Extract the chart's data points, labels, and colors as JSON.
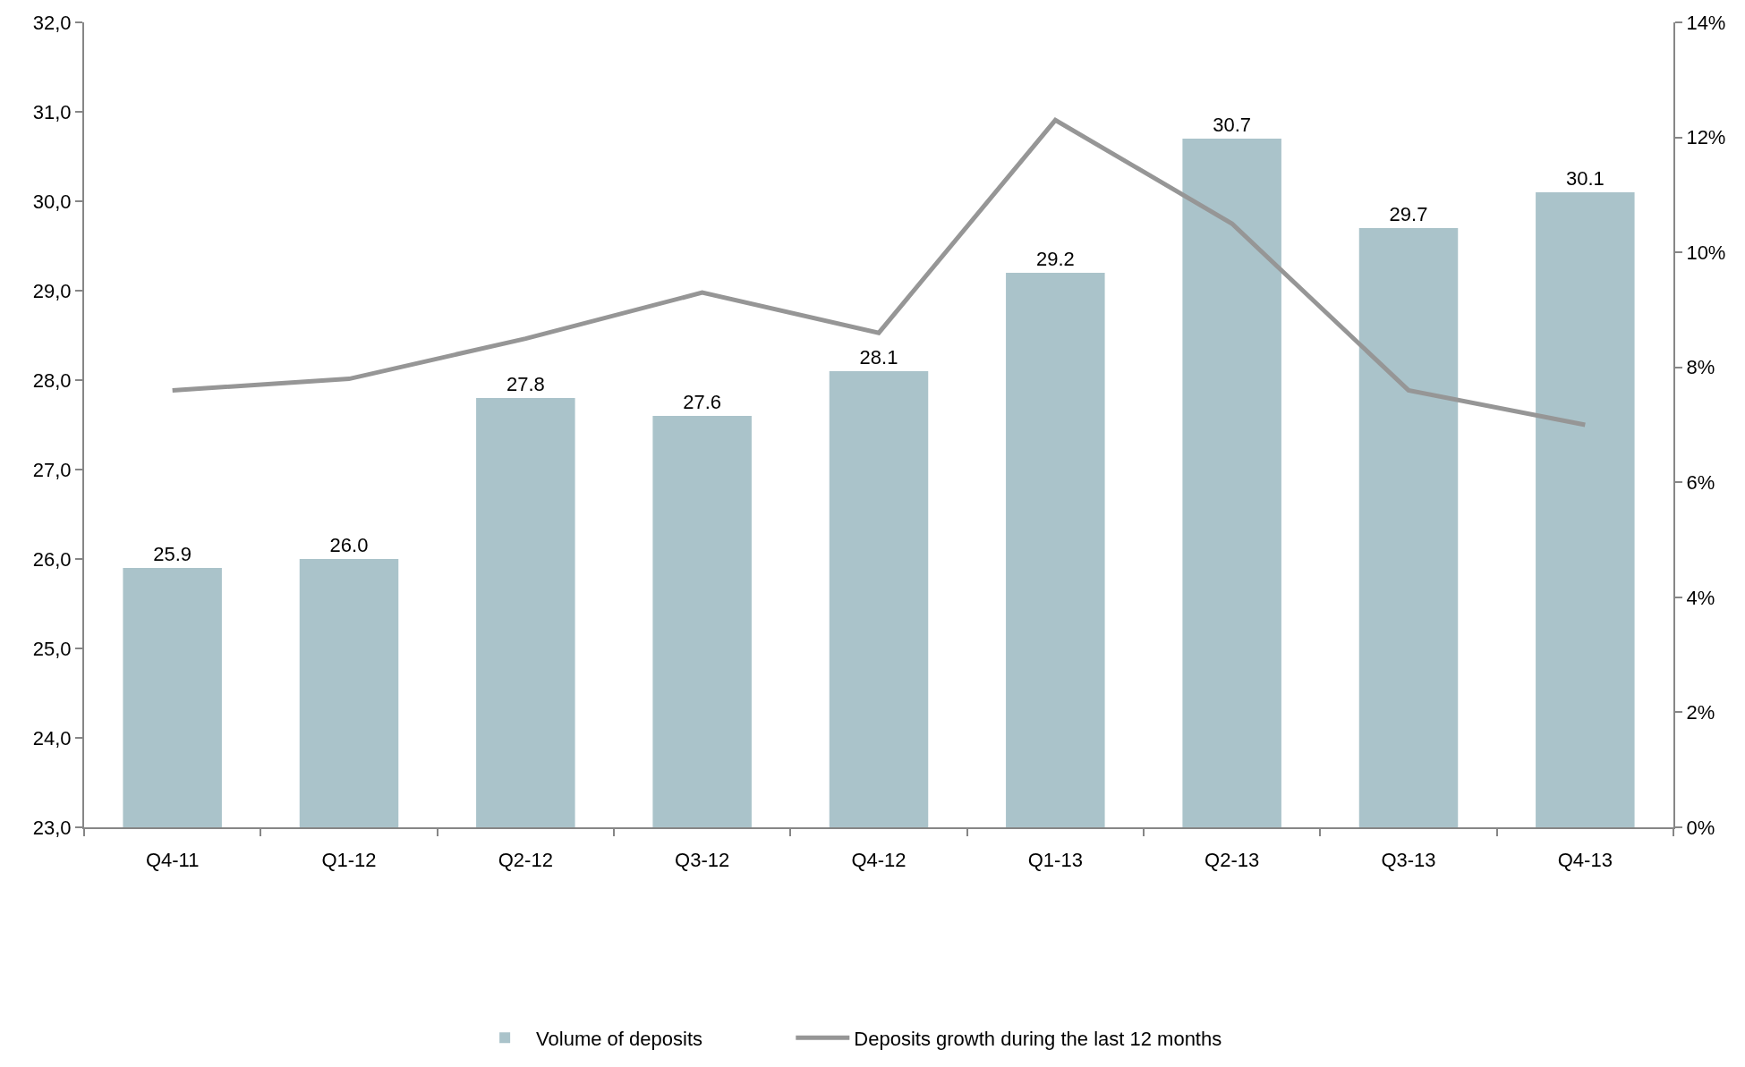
{
  "chart_data": {
    "type": "bar",
    "categories": [
      "Q4-11",
      "Q1-12",
      "Q2-12",
      "Q3-12",
      "Q4-12",
      "Q1-13",
      "Q2-13",
      "Q3-13",
      "Q4-13"
    ],
    "series": [
      {
        "name": "Volume of deposits",
        "color": "#aac3ca",
        "values": [
          25.9,
          26.0,
          27.8,
          27.6,
          28.1,
          29.2,
          30.7,
          29.7,
          30.1
        ],
        "value_labels": [
          "25.9",
          "26.0",
          "27.8",
          "27.6",
          "28.1",
          "29.2",
          "30.7",
          "29.7",
          "30.1"
        ]
      },
      {
        "name": "Deposits growth during the last 12 months",
        "type": "line",
        "axis": "y2",
        "color": "#969696",
        "line_style": "solid",
        "values": [
          7.6,
          7.8,
          8.5,
          9.3,
          8.6,
          12.3,
          10.5,
          7.6,
          7.0
        ]
      }
    ],
    "ylim": [
      23,
      32
    ],
    "yticks": [
      {
        "value": 23,
        "label": "23,0"
      },
      {
        "value": 24,
        "label": "24,0"
      },
      {
        "value": 25,
        "label": "25,0"
      },
      {
        "value": 26,
        "label": "26,0"
      },
      {
        "value": 27,
        "label": "27,0"
      },
      {
        "value": 28,
        "label": "28,0"
      },
      {
        "value": 29,
        "label": "29,0"
      },
      {
        "value": 30,
        "label": "30,0"
      },
      {
        "value": 31,
        "label": "31,0"
      },
      {
        "value": 32,
        "label": "32,0"
      }
    ],
    "y2lim": [
      0,
      14
    ],
    "y2ticks": [
      {
        "value": 0,
        "label": "0%"
      },
      {
        "value": 2,
        "label": "2%"
      },
      {
        "value": 4,
        "label": "4%"
      },
      {
        "value": 6,
        "label": "6%"
      },
      {
        "value": 8,
        "label": "8%"
      },
      {
        "value": 10,
        "label": "10%"
      },
      {
        "value": 12,
        "label": "12%"
      },
      {
        "value": 14,
        "label": "14%"
      }
    ],
    "legend": "bottom",
    "marker": "none"
  }
}
